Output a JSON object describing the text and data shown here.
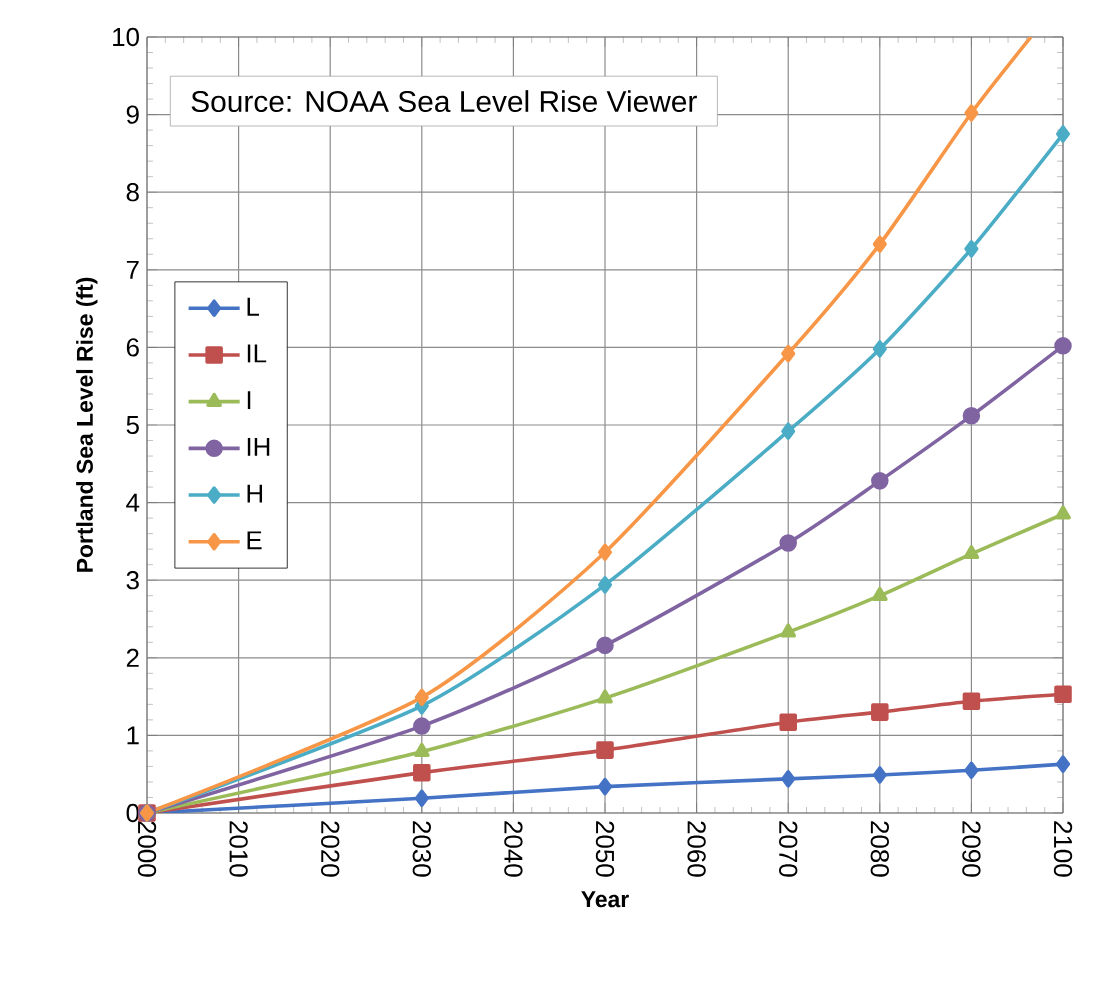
{
  "chart_data": {
    "type": "line",
    "xlabel": "Year",
    "ylabel": "Portland Sea Level Rise (ft)",
    "annotations": [
      "Source: NOAA Sea Level Rise Viewer"
    ],
    "x": [
      2000,
      2030,
      2050,
      2070,
      2080,
      2090,
      2100
    ],
    "series": [
      {
        "name": "L",
        "color": "#4472c4",
        "marker": "diamond",
        "values": [
          0,
          0.19,
          0.34,
          0.44,
          0.49,
          0.55,
          0.63
        ]
      },
      {
        "name": "IL",
        "color": "#c0504d",
        "marker": "square",
        "values": [
          0,
          0.52,
          0.81,
          1.17,
          1.3,
          1.44,
          1.53
        ]
      },
      {
        "name": "I",
        "color": "#9bbb59",
        "marker": "triangle",
        "values": [
          0,
          0.79,
          1.48,
          2.33,
          2.8,
          3.34,
          3.85
        ]
      },
      {
        "name": "IH",
        "color": "#8064a2",
        "marker": "circle",
        "values": [
          0,
          1.12,
          2.16,
          3.48,
          4.28,
          5.12,
          6.02
        ]
      },
      {
        "name": "H",
        "color": "#4bacc6",
        "marker": "diamond",
        "values": [
          0,
          1.38,
          2.94,
          4.92,
          5.98,
          7.27,
          8.75
        ]
      },
      {
        "name": "E",
        "color": "#f79646",
        "marker": "diamond",
        "x": [
          2000,
          2030,
          2050,
          2070,
          2080,
          2090,
          2096.5
        ],
        "values": [
          0,
          1.49,
          3.36,
          5.92,
          7.33,
          9.02,
          10
        ]
      }
    ],
    "xlim": [
      2000,
      2100
    ],
    "xticks": [
      2000,
      2010,
      2020,
      2030,
      2040,
      2050,
      2060,
      2070,
      2080,
      2090,
      2100
    ],
    "ylim": [
      0,
      10
    ],
    "yticks": [
      0,
      1,
      2,
      3,
      4,
      5,
      6,
      7,
      8,
      9,
      10
    ],
    "grid": true,
    "legend": "left",
    "line_style": "solid"
  }
}
